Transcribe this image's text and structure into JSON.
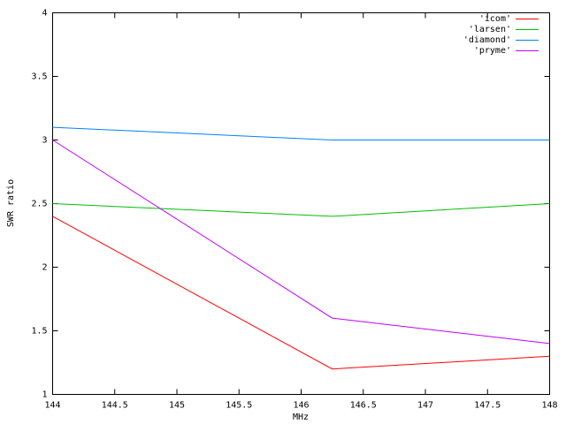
{
  "chart_data": {
    "type": "line",
    "xlabel": "MHz",
    "ylabel": "SWR ratio",
    "x": [
      144,
      146.25,
      148
    ],
    "series": [
      {
        "name": "'icom'",
        "color": "#ff0000",
        "values": [
          2.4,
          1.2,
          1.3
        ]
      },
      {
        "name": "'larsen'",
        "color": "#00c000",
        "values": [
          2.5,
          2.4,
          2.5
        ]
      },
      {
        "name": "'diamond'",
        "color": "#0080ff",
        "values": [
          3.1,
          3.0,
          3.0
        ]
      },
      {
        "name": "'pryme'",
        "color": "#c000ff",
        "values": [
          3.0,
          1.6,
          1.4
        ]
      }
    ],
    "xlim": [
      144,
      148
    ],
    "xticks": [
      144,
      144.5,
      145,
      145.5,
      146,
      146.5,
      147,
      147.5,
      148
    ],
    "ylim": [
      1,
      4
    ],
    "yticks": [
      1,
      1.5,
      2,
      2.5,
      3,
      3.5,
      4
    ],
    "legend": "top-right"
  }
}
